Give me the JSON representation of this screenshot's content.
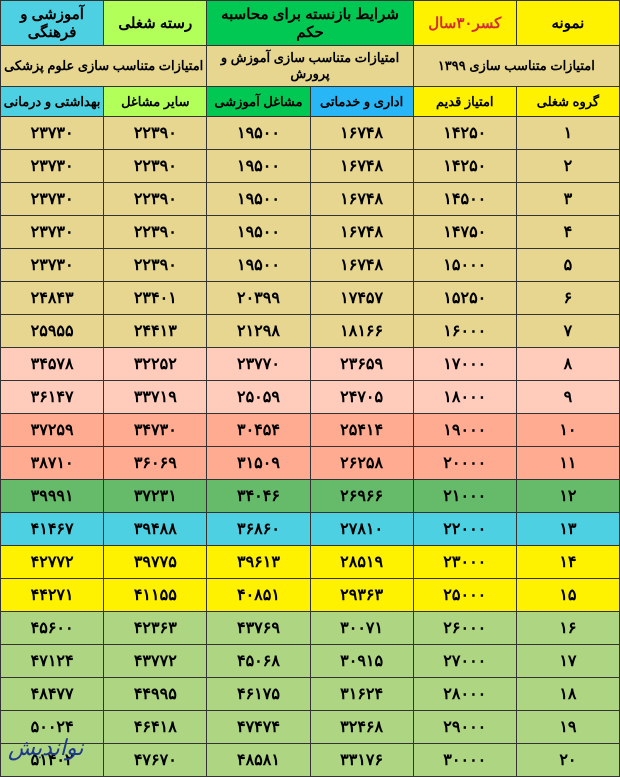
{
  "header_top": {
    "cells": [
      {
        "text": "نمونه",
        "class": "c-yellow",
        "colspan": 1
      },
      {
        "text": "کسر۳۰سال",
        "class": "c-yellow c-red-text",
        "colspan": 1
      },
      {
        "text": "شرایط بازنسته برای محاسبه حکم",
        "class": "c-green",
        "colspan": 2
      },
      {
        "text": "رسته شغلی",
        "class": "c-ltgreen",
        "colspan": 1
      },
      {
        "text": "آموزشی و فرهنگی",
        "class": "c-cyan",
        "colspan": 1
      }
    ]
  },
  "header_sub": {
    "cells": [
      {
        "text": "امتیازات متناسب سازی ۱۳۹۹",
        "class": "c-khaki",
        "colspan": 2
      },
      {
        "text": "امتیازات متناسب سازی آموزش و پرورش",
        "class": "c-khaki",
        "colspan": 2
      },
      {
        "text": "امتیازات متناسب سازی علوم پزشکی",
        "class": "c-khaki",
        "colspan": 2
      }
    ]
  },
  "header_cols": {
    "cells": [
      {
        "text": "گروه شغلی",
        "class": "c-yellow"
      },
      {
        "text": "امتیاز قدیم",
        "class": "c-yellow"
      },
      {
        "text": "اداری و خدماتی",
        "class": "c-blue"
      },
      {
        "text": "مشاغل آموزشی",
        "class": "c-green"
      },
      {
        "text": "سایر مشاغل",
        "class": "c-ltgreen"
      },
      {
        "text": "بهداشتی و درمانی",
        "class": "c-cyan"
      }
    ]
  },
  "rows": [
    {
      "class": "c-khaki",
      "cells": [
        "۱",
        "۱۴۲۵۰",
        "۱۶۷۴۸",
        "۱۹۵۰۰",
        "۲۲۳۹۰",
        "۲۳۷۳۰"
      ]
    },
    {
      "class": "c-khaki",
      "cells": [
        "۲",
        "۱۴۲۵۰",
        "۱۶۷۴۸",
        "۱۹۵۰۰",
        "۲۲۳۹۰",
        "۲۳۷۳۰"
      ]
    },
    {
      "class": "c-khaki",
      "cells": [
        "۳",
        "۱۴۵۰۰",
        "۱۶۷۴۸",
        "۱۹۵۰۰",
        "۲۲۳۹۰",
        "۲۳۷۳۰"
      ]
    },
    {
      "class": "c-khaki",
      "cells": [
        "۴",
        "۱۴۷۵۰",
        "۱۶۷۴۸",
        "۱۹۵۰۰",
        "۲۲۳۹۰",
        "۲۳۷۳۰"
      ]
    },
    {
      "class": "c-khaki",
      "cells": [
        "۵",
        "۱۵۰۰۰",
        "۱۶۷۴۸",
        "۱۹۵۰۰",
        "۲۲۳۹۰",
        "۲۳۷۳۰"
      ]
    },
    {
      "class": "c-khaki",
      "cells": [
        "۶",
        "۱۵۲۵۰",
        "۱۷۴۵۷",
        "۲۰۳۹۹",
        "۲۳۴۰۱",
        "۲۴۸۴۳"
      ]
    },
    {
      "class": "c-khaki",
      "cells": [
        "۷",
        "۱۶۰۰۰",
        "۱۸۱۶۶",
        "۲۱۲۹۸",
        "۲۴۴۱۳",
        "۲۵۹۵۵"
      ]
    },
    {
      "class": "c-peach",
      "cells": [
        "۸",
        "۱۷۰۰۰",
        "۲۳۶۵۹",
        "۲۳۷۷۰",
        "۳۲۲۵۲",
        "۳۴۵۷۸"
      ]
    },
    {
      "class": "c-peach",
      "cells": [
        "۹",
        "۱۸۰۰۰",
        "۲۴۷۰۵",
        "۲۵۰۵۹",
        "۳۳۷۱۹",
        "۳۶۱۴۷"
      ]
    },
    {
      "class": "c-orange",
      "cells": [
        "۱۰",
        "۱۹۰۰۰",
        "۲۵۴۱۴",
        "۳۰۴۵۴",
        "۳۴۷۳۰",
        "۳۷۲۵۹"
      ]
    },
    {
      "class": "c-orange",
      "cells": [
        "۱۱",
        "۲۰۰۰۰",
        "۲۶۲۵۸",
        "۳۱۵۰۹",
        "۳۶۰۶۹",
        "۳۸۷۱۰"
      ]
    },
    {
      "class": "c-darkgreen",
      "cells": [
        "۱۲",
        "۲۱۰۰۰",
        "۲۶۹۶۶",
        "۳۴۰۴۶",
        "۳۷۲۳۱",
        "۳۹۹۹۱"
      ]
    },
    {
      "class": "c-cyan",
      "cells": [
        "۱۳",
        "۲۲۰۰۰",
        "۲۷۸۱۰",
        "۳۶۸۶۰",
        "۳۹۴۸۸",
        "۴۱۴۶۷"
      ]
    },
    {
      "class": "c-yellow",
      "cells": [
        "۱۴",
        "۲۳۰۰۰",
        "۲۸۵۱۹",
        "۳۹۶۱۳",
        "۳۹۷۷۵",
        "۴۲۷۷۲"
      ]
    },
    {
      "class": "c-yellow",
      "cells": [
        "۱۵",
        "۲۵۰۰۰",
        "۲۹۳۶۳",
        "۴۰۸۵۱",
        "۴۱۱۵۵",
        "۴۴۲۷۱"
      ]
    },
    {
      "class": "c-lime",
      "cells": [
        "۱۶",
        "۲۶۰۰۰",
        "۳۰۰۷۱",
        "۴۳۷۶۹",
        "۴۲۳۶۳",
        "۴۵۶۰۰"
      ]
    },
    {
      "class": "c-lime",
      "cells": [
        "۱۷",
        "۲۷۰۰۰",
        "۳۰۹۱۵",
        "۴۵۰۶۸",
        "۴۳۷۷۲",
        "۴۷۱۲۴"
      ]
    },
    {
      "class": "c-lime",
      "cells": [
        "۱۸",
        "۲۸۰۰۰",
        "۳۱۶۲۴",
        "۴۶۱۷۵",
        "۴۴۹۹۵",
        "۴۸۴۷۷"
      ]
    },
    {
      "class": "c-lime",
      "cells": [
        "۱۹",
        "۲۹۰۰۰",
        "۳۲۴۶۸",
        "۴۷۴۷۴",
        "۴۶۴۱۸",
        "۵۰۰۲۴"
      ]
    },
    {
      "class": "c-lime",
      "cells": [
        "۲۰",
        "۳۰۰۰۰",
        "۳۳۱۷۶",
        "۴۸۵۸۱",
        "۴۷۶۷۰",
        "۵۱۴۰۲"
      ]
    }
  ],
  "watermark": "نواندیش"
}
